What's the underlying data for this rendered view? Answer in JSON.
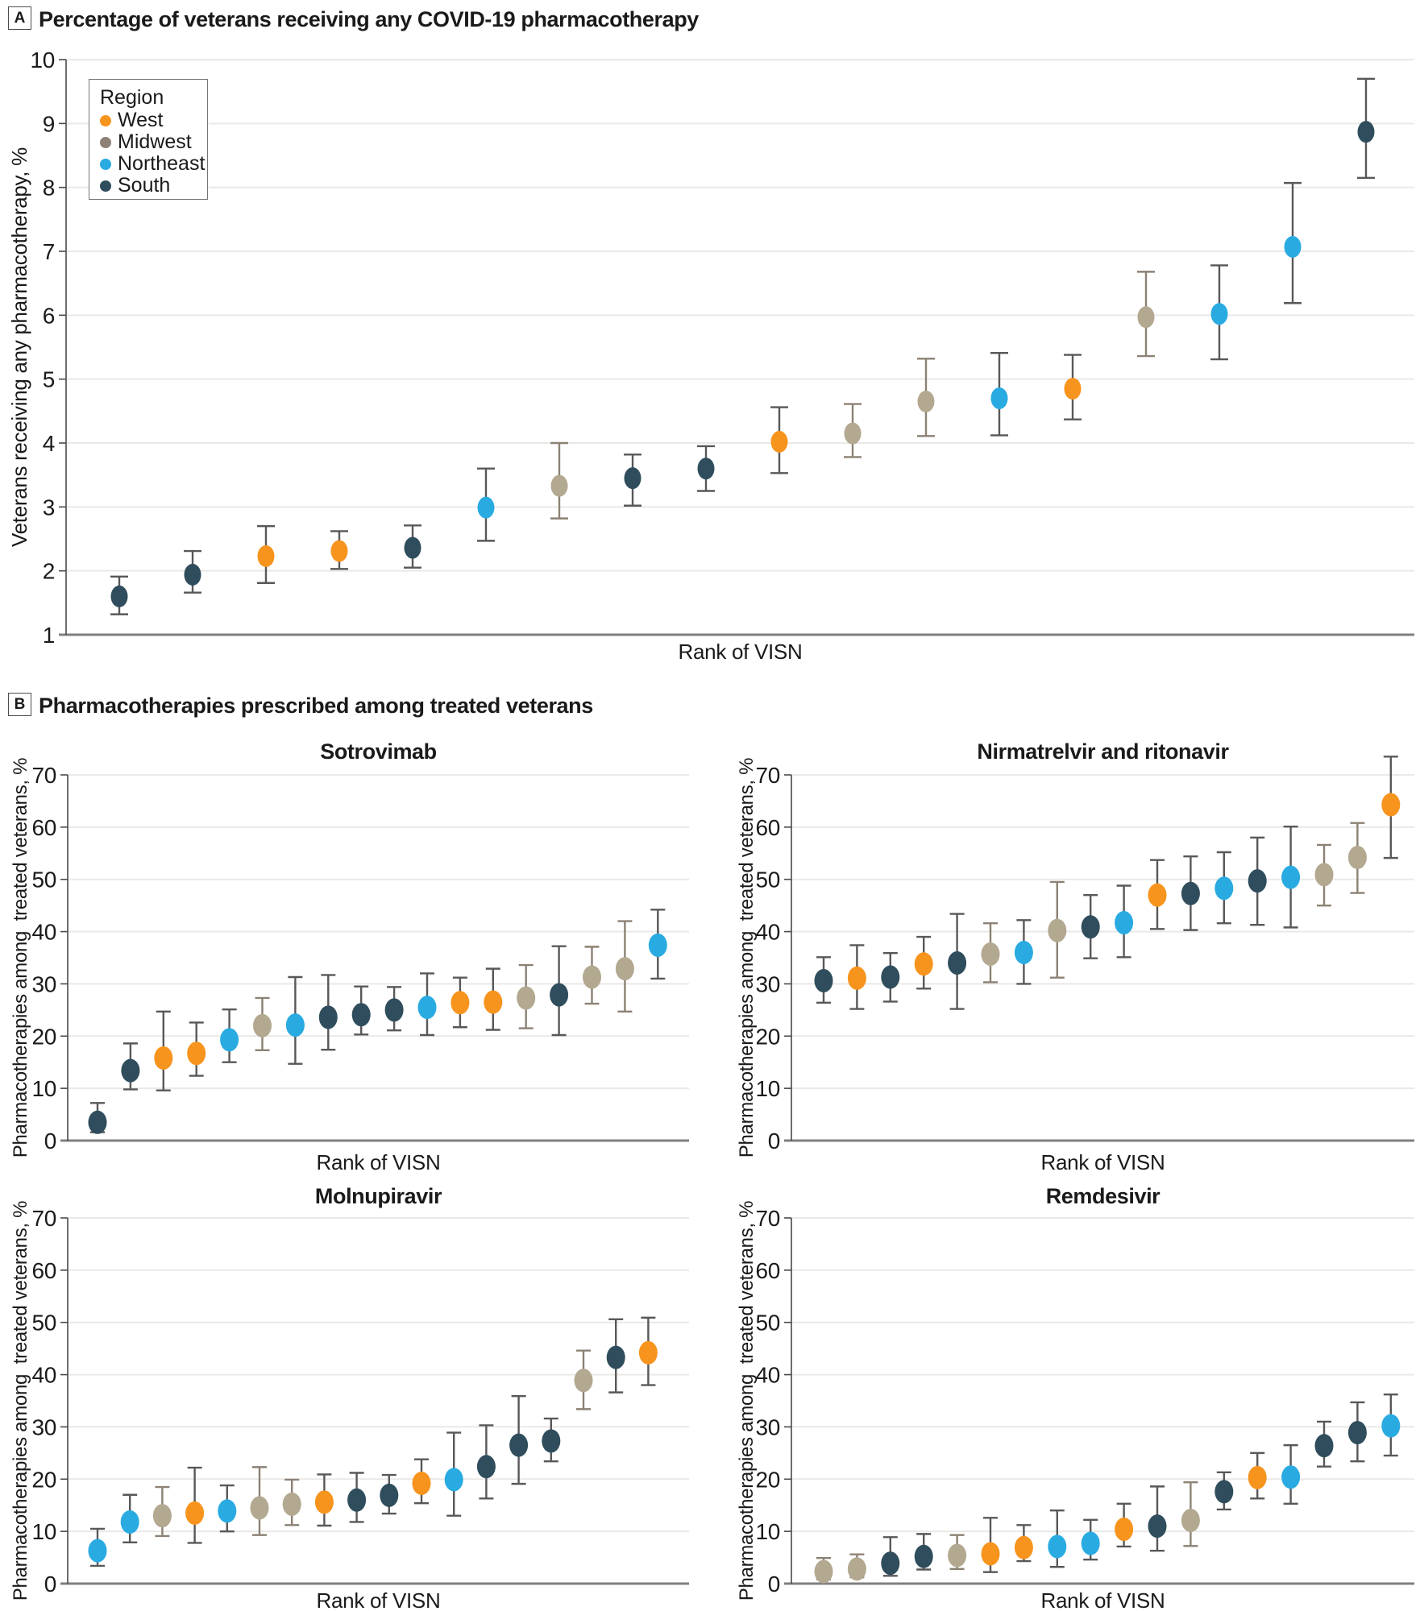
{
  "panel_a": {
    "label": "A",
    "title": "Percentage of veterans receiving any COVID-19 pharmacotherapy"
  },
  "panel_b": {
    "label": "B",
    "title": "Pharmacotherapies prescribed among treated veterans"
  },
  "legend": {
    "title": "Region",
    "items": [
      {
        "label": "West",
        "color": "#F7941E"
      },
      {
        "label": "Midwest",
        "color": "#8C8174"
      },
      {
        "label": "Northeast",
        "color": "#29ABE2"
      },
      {
        "label": "South",
        "color": "#2F4D5C"
      }
    ]
  },
  "region_colors": {
    "West": {
      "point": "#F7941E",
      "error": "#58585A"
    },
    "Midwest": {
      "point": "#B3A890",
      "error": "#8C8174"
    },
    "Northeast": {
      "point": "#29ABE2",
      "error": "#58585A"
    },
    "South": {
      "point": "#2F4D5C",
      "error": "#58585A"
    }
  },
  "style": {
    "grid": "#EAE9E7",
    "axis_bottom": "#7F7F7F",
    "axis_left": "#4A4A4A",
    "text": "#1A1A1A"
  },
  "chart_data": [
    {
      "type": "scatter",
      "title": "Percentage of veterans receiving any COVID-19 pharmacotherapy",
      "xlabel": "Rank of VISN",
      "ylabel": "Veterans receiving any pharmacotherapy, %",
      "ylim": [
        1,
        10
      ],
      "yticks": [
        1,
        2,
        3,
        4,
        5,
        6,
        7,
        8,
        9,
        10
      ],
      "grid": true,
      "legend_position": "upper-left",
      "n_points": 18,
      "regions": [
        "South",
        "South",
        "West",
        "West",
        "South",
        "Northeast",
        "Midwest",
        "South",
        "South",
        "West",
        "Midwest",
        "Midwest",
        "Northeast",
        "West",
        "Midwest",
        "Northeast",
        "Northeast",
        "South"
      ],
      "values": [
        1.6,
        1.94,
        2.23,
        2.31,
        2.36,
        2.99,
        3.33,
        3.45,
        3.6,
        4.02,
        4.15,
        4.65,
        4.7,
        4.85,
        5.97,
        6.02,
        7.07,
        8.87
      ],
      "ci_low": [
        1.32,
        1.66,
        1.81,
        2.03,
        2.05,
        2.47,
        2.82,
        3.02,
        3.25,
        3.53,
        3.78,
        4.11,
        4.12,
        4.37,
        5.36,
        5.31,
        6.19,
        8.15
      ],
      "ci_high": [
        1.91,
        2.31,
        2.7,
        2.62,
        2.71,
        3.6,
        4.0,
        3.82,
        3.95,
        4.56,
        4.61,
        5.32,
        5.41,
        5.38,
        6.68,
        6.78,
        8.07,
        9.7
      ]
    },
    {
      "type": "scatter",
      "title": "Sotrovimab",
      "xlabel": "Rank of VISN",
      "ylabel": "Pharmacotherapies among  treated veterans, %",
      "ylim": [
        0,
        70
      ],
      "yticks": [
        0,
        10,
        20,
        30,
        40,
        50,
        60,
        70
      ],
      "grid": true,
      "n_points": 18,
      "regions": [
        "South",
        "South",
        "West",
        "West",
        "Northeast",
        "Midwest",
        "Northeast",
        "South",
        "South",
        "South",
        "Northeast",
        "West",
        "West",
        "Midwest",
        "South",
        "Midwest",
        "Midwest",
        "Northeast"
      ],
      "values": [
        3.5,
        13.4,
        15.8,
        16.7,
        19.3,
        22.0,
        22.1,
        23.6,
        24.1,
        25.0,
        25.5,
        26.4,
        26.5,
        27.3,
        27.9,
        31.3,
        32.9,
        37.4
      ],
      "ci_low": [
        1.6,
        9.8,
        9.6,
        12.4,
        15.0,
        17.3,
        14.7,
        17.4,
        20.3,
        21.1,
        20.2,
        21.7,
        21.2,
        21.5,
        20.2,
        26.2,
        24.7,
        31.0
      ],
      "ci_high": [
        7.2,
        18.6,
        24.7,
        22.6,
        25.1,
        27.3,
        31.3,
        31.7,
        29.5,
        29.4,
        32.0,
        31.2,
        32.9,
        33.6,
        37.2,
        37.1,
        42.0,
        44.2
      ]
    },
    {
      "type": "scatter",
      "title": "Nirmatrelvir and ritonavir",
      "xlabel": "Rank of VISN",
      "ylabel": "Pharmacotherapies among  treated veterans, %",
      "ylim": [
        0,
        70
      ],
      "yticks": [
        0,
        10,
        20,
        30,
        40,
        50,
        60,
        70
      ],
      "grid": true,
      "n_points": 18,
      "regions": [
        "South",
        "West",
        "South",
        "West",
        "South",
        "Midwest",
        "Northeast",
        "Midwest",
        "South",
        "Northeast",
        "West",
        "South",
        "Northeast",
        "South",
        "Northeast",
        "Midwest",
        "Midwest",
        "West"
      ],
      "values": [
        30.6,
        31.1,
        31.3,
        33.8,
        34.0,
        35.7,
        36.0,
        40.2,
        40.9,
        41.7,
        47.0,
        47.3,
        48.3,
        49.7,
        50.4,
        50.9,
        54.2,
        64.3
      ],
      "ci_low": [
        26.4,
        25.2,
        26.6,
        29.1,
        25.2,
        30.3,
        30.0,
        31.2,
        34.9,
        35.1,
        40.5,
        40.3,
        41.6,
        41.3,
        40.8,
        45.0,
        47.4,
        54.1
      ],
      "ci_high": [
        35.1,
        37.4,
        35.9,
        39.0,
        43.4,
        41.6,
        42.2,
        49.5,
        47.0,
        48.8,
        53.7,
        54.4,
        55.2,
        58.0,
        60.1,
        56.6,
        60.8,
        73.5
      ]
    },
    {
      "type": "scatter",
      "title": "Molnupiravir",
      "xlabel": "Rank of VISN",
      "ylabel": "Pharmacotherapies among  treated veterans, %",
      "ylim": [
        0,
        70
      ],
      "yticks": [
        0,
        10,
        20,
        30,
        40,
        50,
        60,
        70
      ],
      "grid": true,
      "n_points": 18,
      "regions": [
        "Northeast",
        "Northeast",
        "Midwest",
        "West",
        "Northeast",
        "Midwest",
        "Midwest",
        "West",
        "South",
        "South",
        "West",
        "Northeast",
        "South",
        "South",
        "South",
        "Midwest",
        "South",
        "West"
      ],
      "values": [
        6.3,
        11.8,
        13.0,
        13.5,
        13.9,
        14.5,
        15.2,
        15.6,
        16.0,
        16.9,
        19.2,
        19.9,
        22.4,
        26.5,
        27.3,
        38.9,
        43.3,
        44.2
      ],
      "ci_low": [
        3.4,
        7.9,
        9.1,
        7.8,
        10.0,
        9.3,
        11.2,
        11.1,
        11.8,
        13.4,
        15.4,
        13.0,
        16.3,
        19.1,
        23.4,
        33.4,
        36.6,
        38.0
      ],
      "ci_high": [
        10.5,
        17.0,
        18.5,
        22.2,
        18.8,
        22.3,
        19.9,
        20.9,
        21.2,
        20.8,
        23.8,
        28.9,
        30.3,
        35.9,
        31.6,
        44.6,
        50.6,
        50.9
      ]
    },
    {
      "type": "scatter",
      "title": "Remdesivir",
      "xlabel": "Rank of VISN",
      "ylabel": "Pharmacotherapies among  treated veterans, %",
      "ylim": [
        0,
        70
      ],
      "yticks": [
        0,
        10,
        20,
        30,
        40,
        50,
        60,
        70
      ],
      "grid": true,
      "n_points": 18,
      "regions": [
        "Midwest",
        "Midwest",
        "South",
        "South",
        "Midwest",
        "West",
        "West",
        "Northeast",
        "Northeast",
        "West",
        "South",
        "Midwest",
        "South",
        "West",
        "Northeast",
        "South",
        "South",
        "Northeast"
      ],
      "values": [
        2.3,
        2.8,
        3.9,
        5.2,
        5.4,
        5.7,
        6.9,
        7.1,
        7.7,
        10.4,
        11.0,
        12.1,
        17.6,
        20.3,
        20.4,
        26.4,
        28.9,
        30.2
      ],
      "ci_low": [
        0.8,
        1.2,
        1.5,
        2.7,
        2.8,
        2.2,
        4.3,
        3.2,
        4.6,
        7.1,
        6.3,
        7.2,
        14.2,
        16.3,
        15.3,
        22.4,
        23.4,
        24.5
      ],
      "ci_high": [
        4.9,
        5.6,
        8.9,
        9.5,
        9.3,
        12.6,
        11.2,
        14.0,
        12.2,
        15.3,
        18.6,
        19.4,
        21.3,
        25.0,
        26.5,
        31.0,
        34.7,
        36.2
      ]
    }
  ]
}
